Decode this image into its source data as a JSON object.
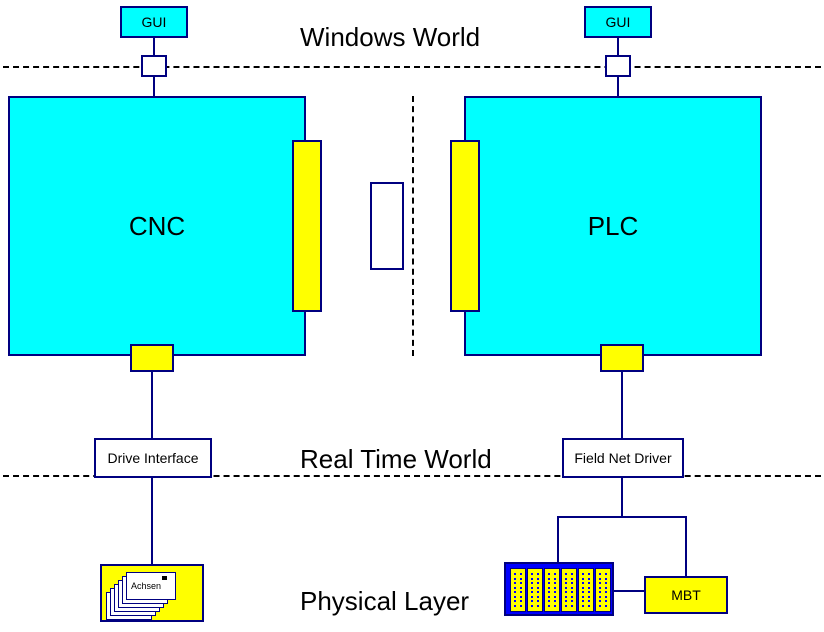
{
  "layers": {
    "windows": "Windows World",
    "realtime": "Real Time World",
    "physical": "Physical Layer"
  },
  "gui_left": "GUI",
  "gui_right": "GUI",
  "cnc": "CNC",
  "plc": "PLC",
  "drive_if": "Drive Interface",
  "field_net": "Field Net Driver",
  "achsen": "Achsen",
  "mbt": "MBT",
  "colors": {
    "cyan": "#00ffff",
    "yellow": "#ffff00",
    "border": "#000080",
    "white": "#ffffff"
  },
  "fonts": {
    "title": 24,
    "big": 24,
    "small": 14,
    "tiny": 10
  }
}
